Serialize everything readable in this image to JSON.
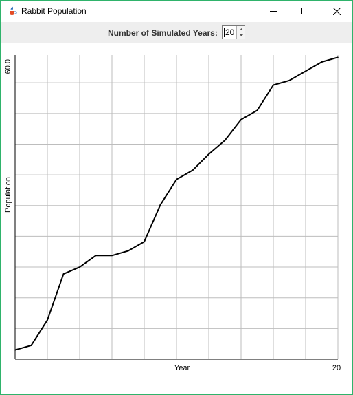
{
  "window": {
    "title": "Rabbit Population",
    "icon": "java-coffee-icon",
    "controls": {
      "minimize": "minimize-icon",
      "maximize": "maximize-icon",
      "close": "close-icon"
    }
  },
  "toolbar": {
    "label": "Number of Simulated Years:",
    "years_value": "20"
  },
  "chart_data": {
    "type": "line",
    "title": "",
    "xlabel": "Year",
    "ylabel": "Population",
    "xlim": [
      0,
      20
    ],
    "ylim": [
      0,
      66
    ],
    "x_tick_labels": [
      "20"
    ],
    "y_tick_labels": [
      "60.0"
    ],
    "grid": true,
    "series": [
      {
        "x": [
          0,
          1,
          2,
          3,
          4,
          5,
          6,
          7,
          8,
          9,
          10,
          11,
          12,
          13,
          14,
          15,
          16,
          17,
          18,
          19,
          20
        ],
        "values": [
          2,
          3,
          8.5,
          18.5,
          20,
          22.5,
          22.5,
          23.5,
          25.5,
          33.5,
          39,
          41,
          44.5,
          47.5,
          52,
          54,
          59.5,
          60.5,
          62.5,
          64.5,
          65.5
        ]
      }
    ],
    "colors": {
      "line": "#000000",
      "grid": "#bdbdbd",
      "axis": "#000000"
    }
  }
}
